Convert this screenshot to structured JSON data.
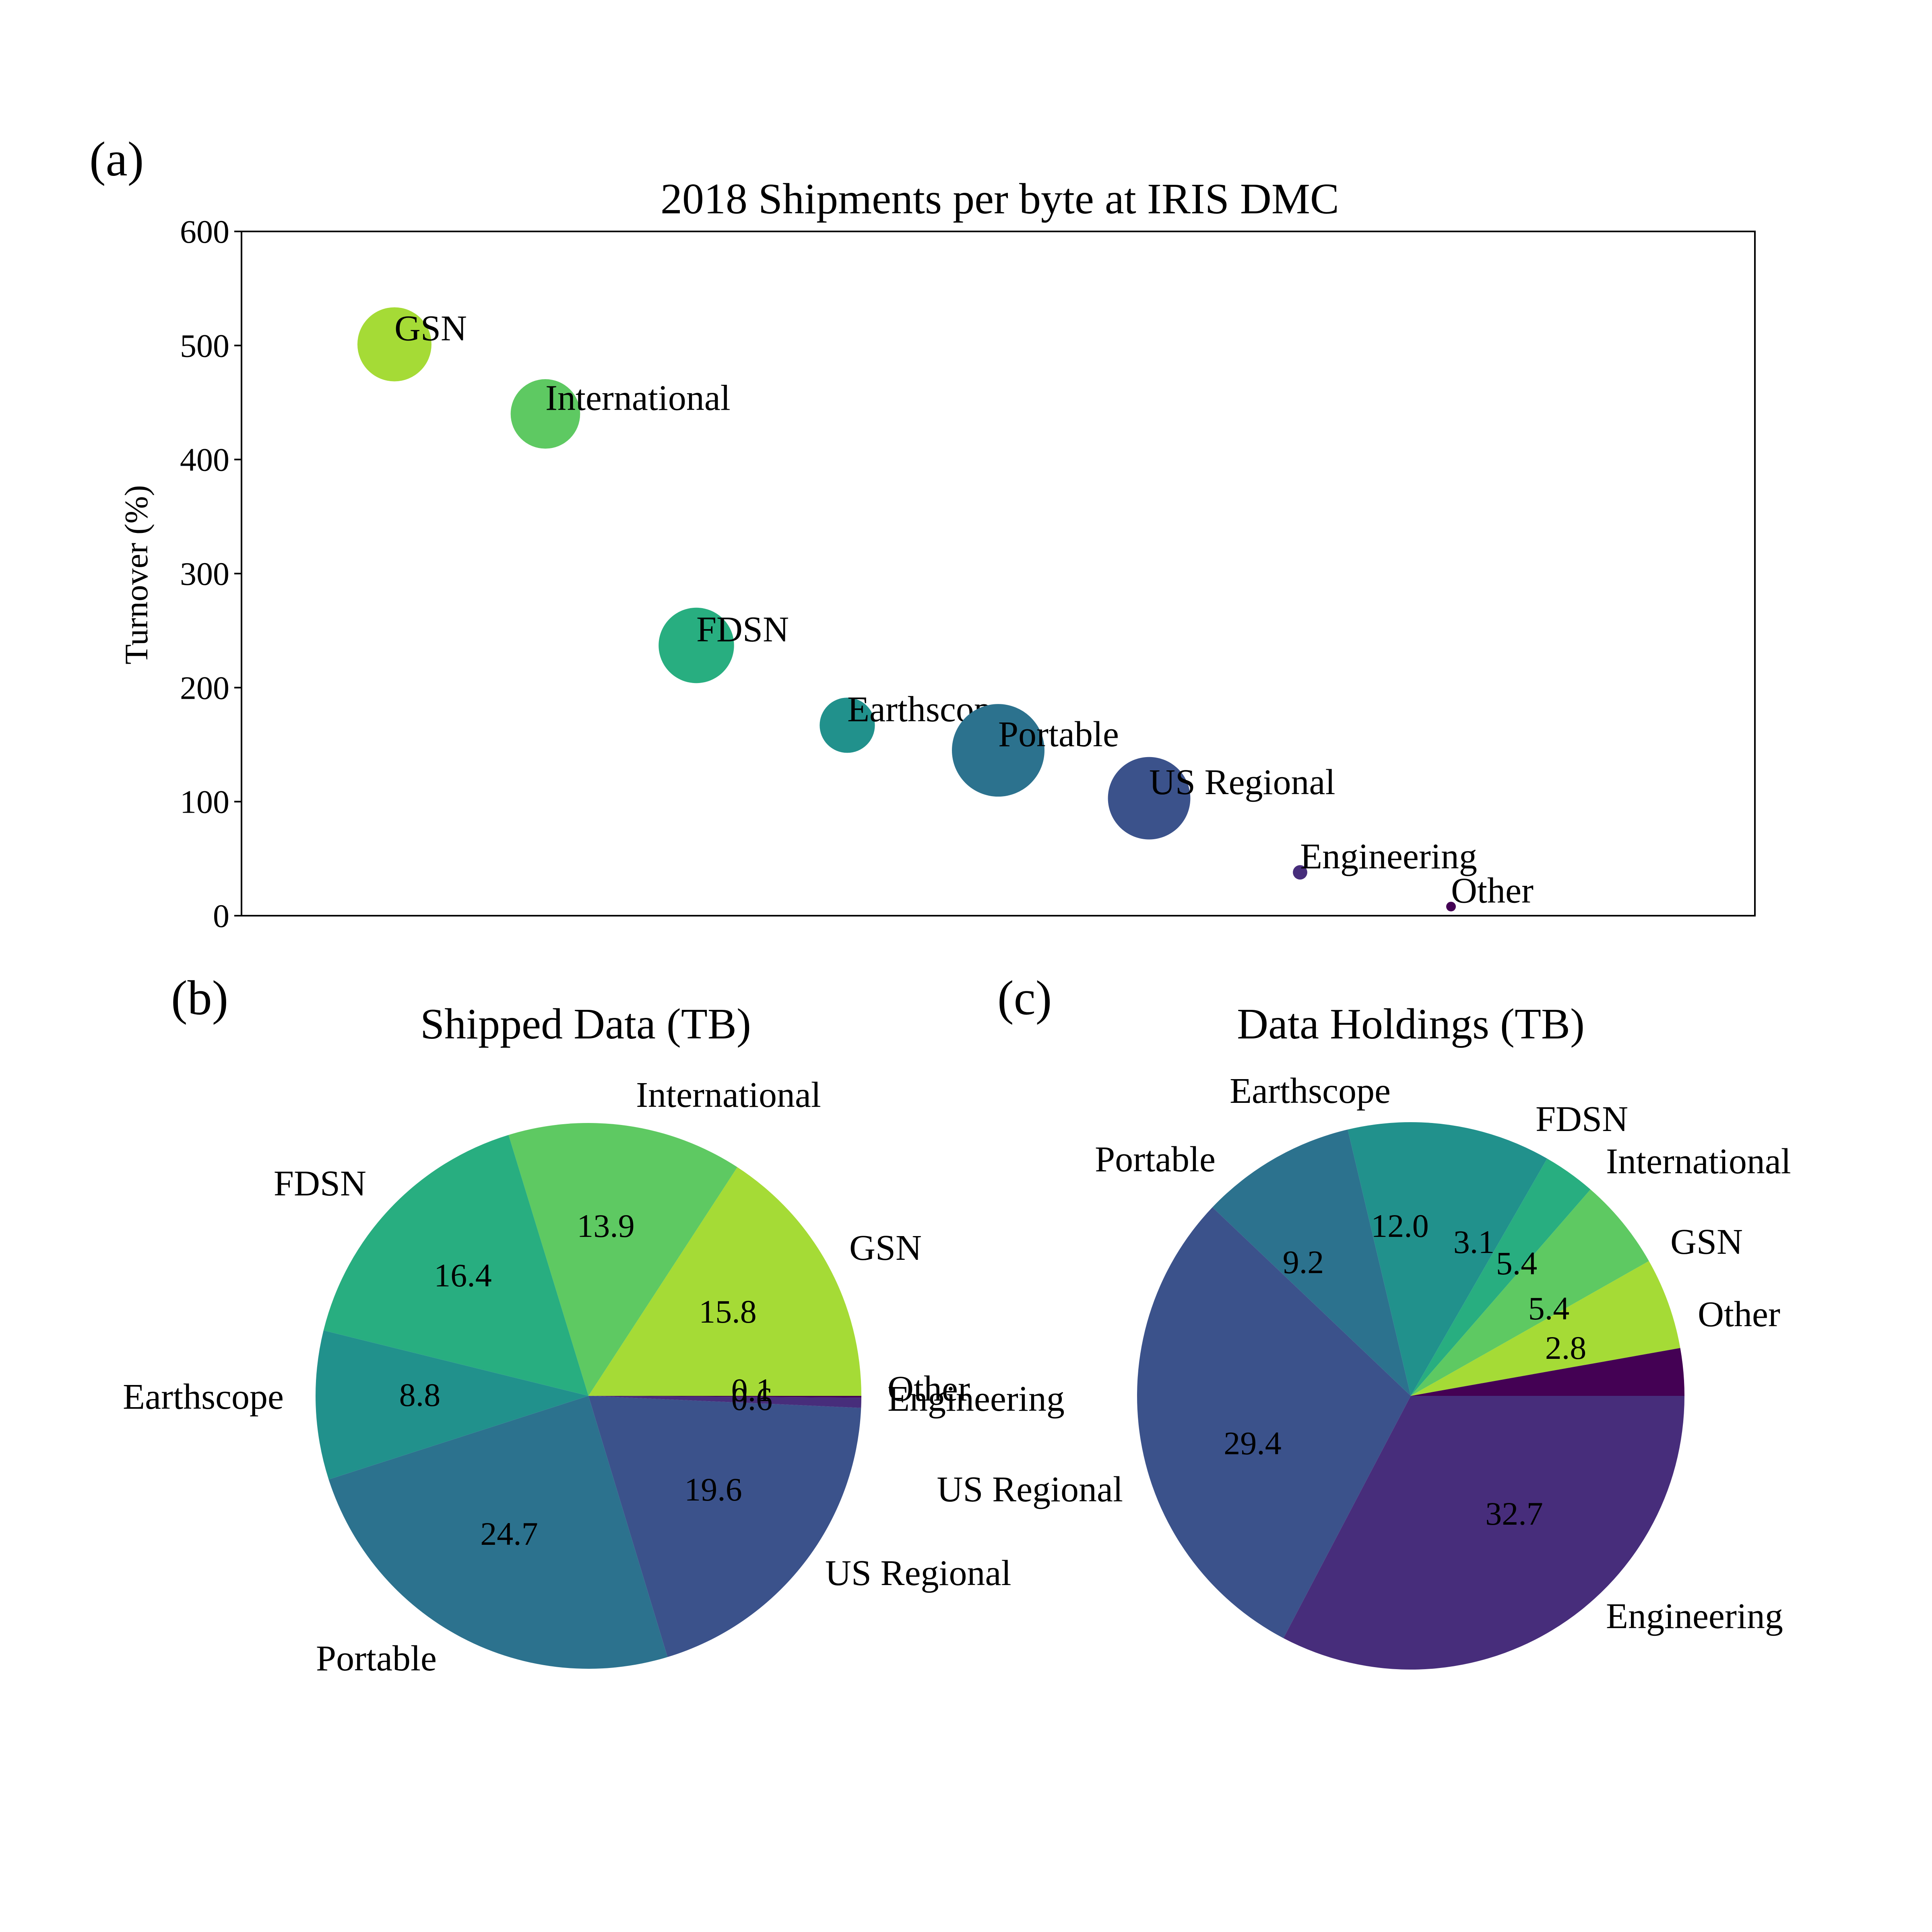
{
  "chart_data": [
    {
      "type": "scatter",
      "panel_label": "(a)",
      "title": "2018 Shipments per byte at IRIS DMC",
      "xlabel": "",
      "ylabel": "Turnover (%)",
      "ylim": [
        0,
        600
      ],
      "yticks": [
        "0",
        "100",
        "200",
        "300",
        "400",
        "500",
        "600"
      ],
      "x_ticks_shown": false,
      "grid": false,
      "marker_size": "bubble, scaled by shipped data",
      "points": [
        {
          "label": "GSN",
          "y": 501,
          "color": "#a5db36"
        },
        {
          "label": "International",
          "y": 440,
          "color": "#5ec962"
        },
        {
          "label": "FDSN",
          "y": 237,
          "color": "#28ae80"
        },
        {
          "label": "Earthscope",
          "y": 167,
          "color": "#21918c"
        },
        {
          "label": "Portable",
          "y": 145,
          "color": "#2c728e"
        },
        {
          "label": "US Regional",
          "y": 103,
          "color": "#3b528b"
        },
        {
          "label": "Engineering",
          "y": 38,
          "color": "#472d7b"
        },
        {
          "label": "Other",
          "y": 8,
          "color": "#440154"
        }
      ]
    },
    {
      "type": "pie",
      "panel_label": "(b)",
      "title": "Shipped Data (TB)",
      "start_angle_deg": 0,
      "direction": "counterclockwise",
      "slices": [
        {
          "label": "GSN",
          "value": 15.8,
          "value_label": "15.8",
          "color": "#a5db36"
        },
        {
          "label": "International",
          "value": 13.9,
          "value_label": "13.9",
          "color": "#5ec962"
        },
        {
          "label": "FDSN",
          "value": 16.4,
          "value_label": "16.4",
          "color": "#28ae80"
        },
        {
          "label": "Earthscope",
          "value": 8.8,
          "value_label": "8.8",
          "color": "#21918c"
        },
        {
          "label": "Portable",
          "value": 24.7,
          "value_label": "24.7",
          "color": "#2c728e"
        },
        {
          "label": "US Regional",
          "value": 19.6,
          "value_label": "19.6",
          "color": "#3b528b"
        },
        {
          "label": "Engineering",
          "value": 0.6,
          "value_label": "0.6",
          "color": "#472d7b"
        },
        {
          "label": "Other",
          "value": 0.1,
          "value_label": "0.1",
          "color": "#440154"
        }
      ]
    },
    {
      "type": "pie",
      "panel_label": "(c)",
      "title": "Data Holdings (TB)",
      "start_angle_deg": 0,
      "direction": "counterclockwise",
      "slices": [
        {
          "label": "Other",
          "value": 2.8,
          "value_label": "2.8",
          "color": "#440154"
        },
        {
          "label": "GSN",
          "value": 5.4,
          "value_label": "5.4",
          "color": "#a5db36"
        },
        {
          "label": "International",
          "value": 5.4,
          "value_label": "5.4",
          "color": "#5ec962"
        },
        {
          "label": "FDSN",
          "value": 3.1,
          "value_label": "3.1",
          "color": "#28ae80"
        },
        {
          "label": "Earthscope",
          "value": 12.0,
          "value_label": "12.0",
          "color": "#21918c"
        },
        {
          "label": "Portable",
          "value": 9.2,
          "value_label": "9.2",
          "color": "#2c728e"
        },
        {
          "label": "US Regional",
          "value": 29.4,
          "value_label": "29.4",
          "color": "#3b528b"
        },
        {
          "label": "Engineering",
          "value": 32.7,
          "value_label": "32.7",
          "color": "#472d7b"
        }
      ]
    }
  ]
}
